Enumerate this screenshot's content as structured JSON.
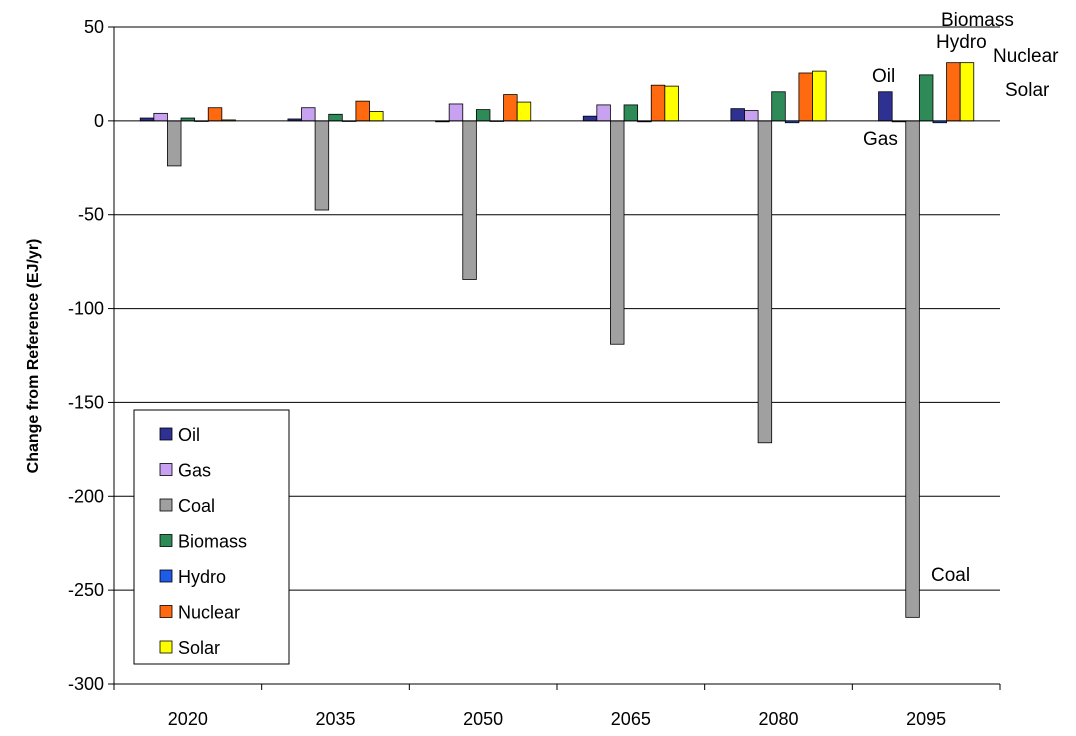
{
  "chart_data": {
    "type": "bar",
    "categories": [
      "2020",
      "2035",
      "2050",
      "2065",
      "2080",
      "2095"
    ],
    "ylabel": "Change from Reference (EJ/yr)",
    "xlabel": "",
    "ylim": [
      -300,
      50
    ],
    "yticks": [
      50,
      0,
      -50,
      -100,
      -150,
      -200,
      -250,
      -300
    ],
    "grid": true,
    "legend": "bottom-left",
    "series": [
      {
        "name": "Oil",
        "color": "#2E3192",
        "values": [
          1.5,
          1,
          -0.5,
          2.5,
          6.5,
          15.5
        ]
      },
      {
        "name": "Gas",
        "color": "#C8A2F0",
        "values": [
          4,
          7,
          9,
          8.5,
          5.5,
          -0.5
        ]
      },
      {
        "name": "Coal",
        "color": "#A0A0A0",
        "values": [
          -24,
          -47.5,
          -84.5,
          -119,
          -171.5,
          -264.5
        ]
      },
      {
        "name": "Biomass",
        "color": "#2E8B57",
        "values": [
          1.5,
          3.5,
          6,
          8.5,
          15.5,
          24.5
        ]
      },
      {
        "name": "Hydro",
        "color": "#1E5BE6",
        "values": [
          0,
          0,
          0,
          -0.5,
          -1,
          -1
        ]
      },
      {
        "name": "Nuclear",
        "color": "#FF6A10",
        "values": [
          7,
          10.5,
          14,
          19,
          25.5,
          31
        ]
      },
      {
        "name": "Solar",
        "color": "#FFFF00",
        "values": [
          0.5,
          5,
          10,
          18.5,
          26.5,
          31
        ]
      }
    ],
    "annotations": [
      "Biomass",
      "Hydro",
      "Nuclear",
      "Oil",
      "Solar",
      "Gas",
      "Coal"
    ]
  }
}
